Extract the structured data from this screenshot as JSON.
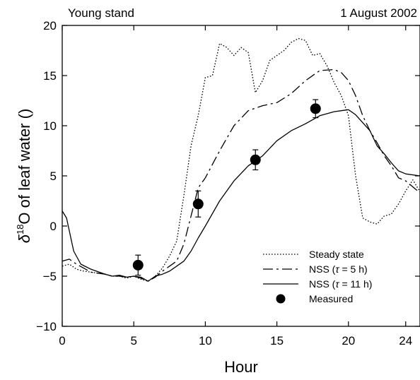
{
  "chart_data": {
    "type": "line",
    "title_left": "Young stand",
    "title_right": "1 August 2002",
    "xlabel": "Hour",
    "ylabel_prefix": "δ",
    "ylabel_sup": "18",
    "ylabel_rest": "O of leaf water ()",
    "xlim": [
      0,
      25
    ],
    "ylim": [
      -10,
      20
    ],
    "xticks": [
      0,
      5,
      10,
      15,
      20,
      24
    ],
    "yticks": [
      -10,
      -5,
      0,
      5,
      10,
      15,
      20
    ],
    "ytick_labels": [
      "−10",
      "−5",
      "0",
      "5",
      "10",
      "15",
      "20"
    ],
    "legend_position": "bottom-right",
    "series": [
      {
        "name": "Steady state",
        "style": "dotted",
        "x": [
          0,
          0.5,
          1,
          1.5,
          2,
          3,
          3.5,
          4,
          4.5,
          5,
          5.5,
          6,
          6.5,
          7,
          7.5,
          8,
          8.5,
          9,
          9.5,
          10,
          10.5,
          11,
          11.5,
          12,
          12.5,
          13,
          13.5,
          14,
          14.5,
          15,
          15.5,
          16,
          16.5,
          17,
          17.5,
          18,
          18.5,
          19,
          19.5,
          20,
          20.5,
          21,
          21.5,
          22,
          22.5,
          23,
          23.5,
          24,
          24.5,
          25
        ],
        "y": [
          -4,
          -3.8,
          -4.3,
          -4.5,
          -4.6,
          -4.8,
          -5,
          -5,
          -5.2,
          -5,
          -5.3,
          -5.5,
          -5,
          -4.2,
          -3,
          -1.5,
          3,
          8,
          11,
          14.8,
          15,
          18.2,
          17.8,
          17,
          17.8,
          17.3,
          13.3,
          14.5,
          16.5,
          17,
          17.5,
          18.3,
          18.7,
          18.5,
          17,
          17.2,
          16,
          14.3,
          13,
          11,
          5,
          0.8,
          0.4,
          0.2,
          1,
          1.2,
          2.2,
          3.5,
          4.6,
          3.4
        ]
      },
      {
        "name": "NSS (τ = 5 h)",
        "name_prefix": "NSS (",
        "name_tau": "τ",
        "name_suffix": " = 5 h)",
        "style": "dashed",
        "x": [
          0,
          0.5,
          1,
          1.5,
          2,
          3,
          3.5,
          4,
          4.5,
          5,
          5.5,
          6,
          6.5,
          7,
          7.5,
          8,
          8.5,
          9,
          9.5,
          10,
          11,
          12,
          13,
          14,
          15,
          16,
          17,
          18,
          19,
          19.5,
          20,
          20.5,
          21,
          21.5,
          22,
          22.5,
          23,
          23.5,
          24,
          25
        ],
        "y": [
          -3.5,
          -3.3,
          -3.8,
          -4.2,
          -4.6,
          -4.8,
          -5,
          -5,
          -5.1,
          -5,
          -5.2,
          -5.5,
          -5.1,
          -4.5,
          -4,
          -3.5,
          -1.8,
          1,
          3.8,
          4.8,
          7.5,
          10,
          11.5,
          12,
          12.3,
          13.2,
          14.5,
          15.5,
          15.6,
          15.3,
          14.5,
          13,
          11,
          9.5,
          8.3,
          7,
          6,
          4.8,
          4.5,
          3.3
        ]
      },
      {
        "name": "NSS (τ = 11 h)",
        "name_prefix": "NSS (",
        "name_tau": "τ",
        "name_suffix": " = 11 h)",
        "style": "solid",
        "x": [
          0,
          0.3,
          0.8,
          1.3,
          2,
          3,
          3.5,
          4,
          4.5,
          5,
          5.5,
          6,
          6.5,
          7,
          7.5,
          8,
          8.5,
          9,
          9.5,
          10,
          11,
          12,
          13,
          14,
          15,
          16,
          17,
          18,
          19,
          19.5,
          20,
          20.5,
          21,
          21.5,
          22,
          22.5,
          23,
          23.5,
          24,
          25
        ],
        "y": [
          1.5,
          0.8,
          -2.5,
          -3.8,
          -4.3,
          -4.8,
          -5,
          -4.9,
          -5.1,
          -5,
          -5.1,
          -5.5,
          -5,
          -4.8,
          -4.5,
          -4,
          -3.5,
          -2.5,
          -1.2,
          0,
          2.5,
          4.5,
          6,
          7,
          8.5,
          9.5,
          10.2,
          11,
          11.4,
          11.5,
          11.6,
          11.1,
          10.3,
          9.5,
          8,
          7.2,
          6.3,
          5.5,
          5.2,
          5
        ]
      }
    ],
    "measured": {
      "name": "Measured",
      "points": [
        {
          "x": 5.3,
          "y": -3.9,
          "err": 1.0
        },
        {
          "x": 9.5,
          "y": 2.2,
          "err": 1.3
        },
        {
          "x": 13.5,
          "y": 6.6,
          "err": 1.0
        },
        {
          "x": 17.7,
          "y": 11.7,
          "err": 0.9
        }
      ]
    }
  }
}
